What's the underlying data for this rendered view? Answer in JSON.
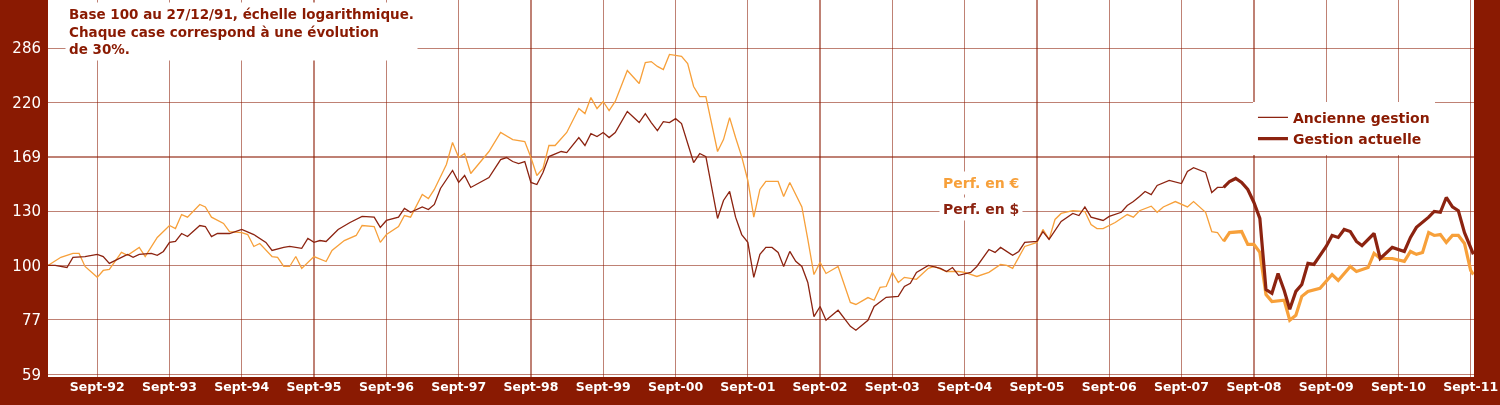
{
  "chart_data": {
    "type": "line",
    "annotations": [
      "Base 100 au 27/12/91, échelle logarithmique.\nChaque case correspond à une évolution\nde 30%.",
      "Perf. en €",
      "Perf. en $"
    ],
    "series": [
      {
        "color": "#f7a03a",
        "x": [
          "1991-12-27",
          "1992-03",
          "1992-05",
          "1992-06",
          "1992-07",
          "1992-09",
          "1992-10",
          "1992-11",
          "1993-01",
          "1993-02",
          "1993-04",
          "1993-05",
          "1993-07",
          "1993-09",
          "1993-10",
          "1993-11",
          "1993-12",
          "1994-02",
          "1994-03",
          "1994-04",
          "1994-06",
          "1994-07",
          "1994-09",
          "1994-10",
          "1994-11",
          "1994-12",
          "1995-02",
          "1995-03",
          "1995-04",
          "1995-05",
          "1995-06",
          "1995-07",
          "1995-09",
          "1995-11",
          "1995-12",
          "1996-02",
          "1996-04",
          "1996-05",
          "1996-07",
          "1996-08",
          "1996-09",
          "1996-11",
          "1996-12",
          "1997-01",
          "1997-03",
          "1997-04",
          "1997-05",
          "1997-07",
          "1997-08",
          "1997-09",
          "1997-10",
          "1997-11",
          "1998-02",
          "1998-04",
          "1998-06",
          "1998-08",
          "1998-09",
          "1998-10",
          "1998-11",
          "1998-12",
          "1999-01",
          "1999-03",
          "1999-05",
          "1999-06",
          "1999-07",
          "1999-08",
          "1999-09",
          "1999-10",
          "1999-11",
          "2000-01",
          "2000-03",
          "2000-04",
          "2000-05",
          "2000-06",
          "2000-07",
          "2000-08",
          "2000-10",
          "2000-11",
          "2000-12",
          "2001-01",
          "2001-02",
          "2001-04",
          "2001-05",
          "2001-06",
          "2001-07",
          "2001-08",
          "2001-09",
          "2001-10",
          "2001-11",
          "2001-12",
          "2002-02",
          "2002-03",
          "2002-04",
          "2002-06",
          "2002-07",
          "2002-08",
          "2002-09",
          "2002-10",
          "2002-12",
          "2003-02",
          "2003-03",
          "2003-05",
          "2003-06",
          "2003-07",
          "2003-08",
          "2003-09",
          "2003-10",
          "2003-11",
          "2004-01",
          "2004-03",
          "2004-04",
          "2004-06",
          "2004-08",
          "2004-09",
          "2004-11",
          "2005-01",
          "2005-03",
          "2005-04",
          "2005-05",
          "2005-07",
          "2005-09",
          "2005-10",
          "2005-11",
          "2005-12",
          "2006-01",
          "2006-03",
          "2006-05",
          "2006-06",
          "2006-07",
          "2006-08",
          "2006-10",
          "2006-12",
          "2007-01",
          "2007-02",
          "2007-04",
          "2007-05",
          "2007-06",
          "2007-08",
          "2007-10",
          "2007-11",
          "2008-01",
          "2008-02",
          "2008-03",
          "2008-04"
        ],
        "values": [
          100,
          104,
          106,
          106,
          99.5,
          94.4,
          97.6,
          98.1,
          106.5,
          105,
          109.1,
          104.4,
          114.5,
          121.3,
          119.5,
          127.9,
          126.3,
          134.3,
          132.7,
          126.3,
          122.5,
          117.8,
          117.2,
          116.1,
          109.6,
          111.2,
          104.4,
          104,
          99.5,
          99.5,
          104.4,
          98.6,
          104.4,
          101.9,
          107.5,
          112.8,
          115.6,
          121.3,
          120.7,
          111.8,
          116.1,
          120.7,
          127.3,
          126.3,
          140.9,
          138.2,
          144.4,
          162.9,
          181.2,
          168.5,
          171.8,
          156,
          173.5,
          190.2,
          183.8,
          182.1,
          168.5,
          154.5,
          159.8,
          178.6,
          178.6,
          190.2,
          213.6,
          208.4,
          225.2,
          213.6,
          221,
          211.5,
          221,
          256.6,
          241,
          266.8,
          268,
          261.8,
          257.9,
          277.4,
          275,
          265.5,
          237.6,
          226.3,
          226.3,
          173.5,
          183.8,
          204.4,
          185.6,
          169.3,
          150.8,
          126.3,
          144.4,
          150.1,
          150.1,
          139.6,
          149.4,
          132.7,
          113.4,
          95.7,
          101.5,
          96.2,
          99.5,
          83.6,
          82.8,
          85.6,
          84.5,
          89.9,
          90.3,
          96.7,
          92.1,
          94.4,
          93.5,
          98.6,
          99.5,
          97.1,
          97.1,
          96.7,
          94.8,
          96.7,
          100.5,
          100,
          98.6,
          109.6,
          111.8,
          119,
          113.4,
          124.9,
          128.6,
          130.3,
          129.8,
          121.9,
          119.5,
          119.5,
          123.1,
          127.9,
          126.3,
          130.3,
          133.2,
          129.3,
          132.7,
          136.2,
          132.7,
          136.2,
          129.3,
          117.8,
          117.2,
          112.3
        ]
      },
      {
        "name": "Ancienne gestion",
        "color": "#8c2310",
        "x": [
          "1991-12-27",
          "1992-02",
          "1992-04",
          "1992-05",
          "1992-07",
          "1992-09",
          "1992-10",
          "1992-11",
          "1993-02",
          "1993-03",
          "1993-04",
          "1993-06",
          "1993-07",
          "1993-08",
          "1993-09",
          "1993-10",
          "1993-11",
          "1993-12",
          "1994-02",
          "1994-03",
          "1994-04",
          "1994-05",
          "1994-07",
          "1994-09",
          "1994-11",
          "1995-01",
          "1995-02",
          "1995-04",
          "1995-05",
          "1995-07",
          "1995-08",
          "1995-09",
          "1995-10",
          "1995-11",
          "1996-01",
          "1996-03",
          "1996-05",
          "1996-07",
          "1996-08",
          "1996-09",
          "1996-11",
          "1996-12",
          "1997-01",
          "1997-03",
          "1997-04",
          "1997-05",
          "1997-06",
          "1997-08",
          "1997-09",
          "1997-10",
          "1997-11",
          "1998-02",
          "1998-04",
          "1998-05",
          "1998-06",
          "1998-07",
          "1998-08",
          "1998-09",
          "1998-10",
          "1998-11",
          "1998-12",
          "1999-02",
          "1999-03",
          "1999-05",
          "1999-06",
          "1999-07",
          "1999-08",
          "1999-09",
          "1999-10",
          "1999-11",
          "2000-01",
          "2000-03",
          "2000-04",
          "2000-05",
          "2000-06",
          "2000-07",
          "2000-08",
          "2000-09",
          "2000-10",
          "2000-12",
          "2001-01",
          "2001-02",
          "2001-04",
          "2001-05",
          "2001-06",
          "2001-07",
          "2001-08",
          "2001-09",
          "2001-10",
          "2001-11",
          "2001-12",
          "2002-01",
          "2002-02",
          "2002-03",
          "2002-04",
          "2002-05",
          "2002-06",
          "2002-07",
          "2002-08",
          "2002-09",
          "2002-10",
          "2002-12",
          "2003-02",
          "2003-03",
          "2003-05",
          "2003-06",
          "2003-08",
          "2003-10",
          "2003-11",
          "2003-12",
          "2004-01",
          "2004-03",
          "2004-05",
          "2004-06",
          "2004-07",
          "2004-08",
          "2004-10",
          "2004-11",
          "2005-01",
          "2005-02",
          "2005-03",
          "2005-05",
          "2005-06",
          "2005-07",
          "2005-09",
          "2005-10",
          "2005-11",
          "2006-01",
          "2006-03",
          "2006-04",
          "2006-05",
          "2006-06",
          "2006-08",
          "2006-09",
          "2006-11",
          "2006-12",
          "2007-01",
          "2007-02",
          "2007-03",
          "2007-04",
          "2007-05",
          "2007-07",
          "2007-09",
          "2007-10",
          "2007-11",
          "2008-01",
          "2008-02",
          "2008-03",
          "2008-04"
        ],
        "values": [
          100,
          100,
          99,
          104,
          104.4,
          105.5,
          104.4,
          101,
          105.5,
          104,
          105.5,
          106,
          105,
          107,
          111.8,
          112.3,
          116.7,
          115,
          121.3,
          120.7,
          115,
          116.7,
          116.7,
          119,
          116.1,
          111.8,
          107.5,
          109.1,
          109.6,
          108.6,
          113.9,
          111.8,
          112.8,
          112.3,
          119,
          123.1,
          126.8,
          126.3,
          120.2,
          124.3,
          126.3,
          131.7,
          129.3,
          132.7,
          131,
          134.3,
          145.1,
          158.3,
          149.4,
          154.5,
          145.8,
          153,
          166.8,
          168.5,
          165.3,
          163.7,
          165.3,
          149.4,
          147.9,
          156.8,
          169.3,
          173.5,
          172.6,
          185.6,
          178.6,
          189.2,
          186.5,
          190.2,
          185.6,
          190.2,
          210.5,
          199.6,
          208.4,
          199.6,
          192,
          200.5,
          199.6,
          203.4,
          198.6,
          164.5,
          171.8,
          169.3,
          125.5,
          136.9,
          143,
          126.3,
          116.1,
          111.8,
          94.4,
          105.5,
          109.1,
          109.1,
          106.5,
          99.5,
          107,
          102,
          99.5,
          92.1,
          78.1,
          82,
          76.7,
          80.5,
          74.5,
          73.1,
          76.7,
          82,
          85.7,
          86.1,
          90.3,
          91.7,
          96.7,
          100,
          98.6,
          97.1,
          99,
          95.3,
          96.7,
          99.5,
          108,
          106.5,
          109.1,
          105,
          107,
          111.8,
          112.3,
          117.8,
          113.4,
          123.7,
          128.6,
          127.3,
          132.7,
          126.3,
          124.3,
          126.8,
          129.3,
          133.6,
          136.2,
          139.6,
          143,
          140.9,
          147.2,
          150.8,
          148.6,
          157.5,
          160.5,
          156.8,
          142.3,
          145.8,
          145.8
        ]
      },
      {
        "color": "#f7a03a",
        "x": [
          "2008-04",
          "2008-05",
          "2008-07",
          "2008-08",
          "2008-09",
          "2008-10",
          "2008-11",
          "2008-12",
          "2009-02",
          "2009-03",
          "2009-04",
          "2009-05",
          "2009-06",
          "2009-08",
          "2009-10",
          "2009-11",
          "2010-01",
          "2010-02",
          "2010-04",
          "2010-05",
          "2010-06",
          "2010-08",
          "2010-10",
          "2010-11",
          "2010-12",
          "2011-01",
          "2011-02",
          "2011-03",
          "2011-04",
          "2011-05",
          "2011-06",
          "2011-07",
          "2011-08",
          "2011-09-01",
          "2011-09-15"
        ],
        "values": [
          112.3,
          117.2,
          117.8,
          110.7,
          110.7,
          106.5,
          86.9,
          84,
          84.5,
          76.7,
          78.6,
          86.1,
          88.2,
          89.5,
          95.7,
          93,
          99.5,
          97.1,
          99,
          106,
          103.4,
          103.4,
          102,
          107,
          105.5,
          106.5,
          117.2,
          115.6,
          116.1,
          111.8,
          115.6,
          115.6,
          111.2,
          97.6,
          95.7
        ]
      },
      {
        "name": "Gestion actuelle",
        "color": "#8c2310",
        "x": [
          "2008-04",
          "2008-05",
          "2008-06",
          "2008-07",
          "2008-08",
          "2008-09",
          "2008-10",
          "2008-11",
          "2008-12",
          "2009-01",
          "2009-02",
          "2009-03",
          "2009-04",
          "2009-05",
          "2009-06",
          "2009-07",
          "2009-09",
          "2009-10",
          "2009-11",
          "2009-12",
          "2010-01",
          "2010-02",
          "2010-03",
          "2010-05",
          "2010-06",
          "2010-08",
          "2010-10",
          "2010-11",
          "2010-12",
          "2011-02",
          "2011-03",
          "2011-04",
          "2011-05",
          "2011-06",
          "2011-07",
          "2011-08",
          "2011-09-15"
        ],
        "values": [
          145.8,
          150.1,
          152.3,
          149.4,
          144.4,
          135.6,
          125.5,
          89,
          87.4,
          96.2,
          88.6,
          80.9,
          88.2,
          91.2,
          101,
          100.5,
          109.6,
          115.6,
          114.5,
          119,
          117.8,
          112.3,
          110.1,
          116.7,
          103.4,
          109.1,
          107,
          114.5,
          120.2,
          126.3,
          129.8,
          129.3,
          138.9,
          132.7,
          130.3,
          117.2,
          105.5
        ]
      }
    ],
    "xlim": [
      "1991-12-27",
      "2011-09-18"
    ],
    "xticks": [
      {
        "value": "1992-09-01",
        "label": "Sept-92"
      },
      {
        "value": "1993-09-01",
        "label": "Sept-93"
      },
      {
        "value": "1994-09-01",
        "label": "Sept-94"
      },
      {
        "value": "1995-09-01",
        "label": "Sept-95"
      },
      {
        "value": "1996-09-01",
        "label": "Sept-96"
      },
      {
        "value": "1997-09-01",
        "label": "Sept-97"
      },
      {
        "value": "1998-09-01",
        "label": "Sept-98"
      },
      {
        "value": "1999-09-01",
        "label": "Sept-99"
      },
      {
        "value": "2000-09-01",
        "label": "Sept-00"
      },
      {
        "value": "2001-09-01",
        "label": "Sept-01"
      },
      {
        "value": "2002-09-01",
        "label": "Sept-02"
      },
      {
        "value": "2003-09-01",
        "label": "Sept-03"
      },
      {
        "value": "2004-09-01",
        "label": "Sept-04"
      },
      {
        "value": "2005-09-01",
        "label": "Sept-05"
      },
      {
        "value": "2006-09-01",
        "label": "Sept-06"
      },
      {
        "value": "2007-09-01",
        "label": "Sept-07"
      },
      {
        "value": "2008-09-01",
        "label": "Sept-08"
      },
      {
        "value": "2009-09-01",
        "label": "Sept-09"
      },
      {
        "value": "2010-09-01",
        "label": "Sept-10"
      },
      {
        "value": "2011-09-01",
        "label": "Sept-11"
      }
    ],
    "ylim": [
      58.3,
      361
    ],
    "yticks": [
      59,
      77,
      100,
      130,
      169,
      220,
      286
    ],
    "log": true,
    "grid": true,
    "legend": "top right",
    "marker": "none",
    "line_style": "solid"
  }
}
